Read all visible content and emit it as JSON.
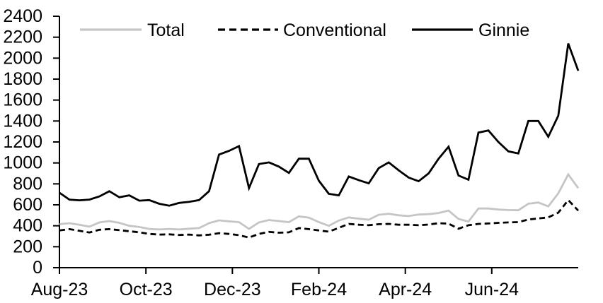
{
  "chart_data": {
    "type": "line",
    "title": "",
    "xlabel": "",
    "ylabel": "",
    "grid": false,
    "legend_position": "top",
    "x_frequency": "weekly",
    "x_tick_labels": [
      "Aug-23",
      "Oct-23",
      "Dec-23",
      "Feb-24",
      "Apr-24",
      "Jun-24"
    ],
    "y_tick_labels": [
      "0",
      "200",
      "400",
      "600",
      "800",
      "1000",
      "1200",
      "1400",
      "1600",
      "1800",
      "2000",
      "2200",
      "2400"
    ],
    "y_axis": {
      "min": 0,
      "max": 2400,
      "step": 200
    },
    "series": [
      {
        "name": "Total",
        "color": "#c5c5c5",
        "dash": "solid",
        "values": [
          415,
          425,
          410,
          392,
          432,
          445,
          428,
          400,
          388,
          370,
          365,
          370,
          365,
          372,
          378,
          425,
          452,
          442,
          435,
          370,
          432,
          455,
          445,
          435,
          490,
          478,
          435,
          400,
          450,
          480,
          468,
          458,
          505,
          515,
          500,
          493,
          507,
          511,
          522,
          545,
          465,
          440,
          565,
          565,
          555,
          550,
          548,
          610,
          622,
          585,
          710,
          890,
          760
        ]
      },
      {
        "name": "Conventional",
        "color": "#000000",
        "dash": "dashed",
        "values": [
          355,
          368,
          352,
          336,
          362,
          368,
          358,
          348,
          338,
          322,
          316,
          318,
          312,
          316,
          308,
          315,
          330,
          322,
          310,
          288,
          322,
          342,
          334,
          338,
          378,
          368,
          355,
          344,
          380,
          418,
          410,
          405,
          415,
          418,
          410,
          410,
          405,
          412,
          425,
          420,
          372,
          405,
          418,
          422,
          428,
          432,
          435,
          460,
          470,
          480,
          525,
          645,
          545
        ]
      },
      {
        "name": "Ginnie",
        "color": "#000000",
        "dash": "solid",
        "values": [
          715,
          650,
          643,
          650,
          680,
          730,
          672,
          690,
          640,
          645,
          610,
          592,
          618,
          628,
          645,
          730,
          1080,
          1115,
          1160,
          760,
          990,
          1005,
          965,
          905,
          1040,
          1040,
          830,
          705,
          690,
          870,
          835,
          805,
          950,
          1005,
          930,
          860,
          825,
          900,
          1040,
          1155,
          880,
          840,
          1290,
          1310,
          1200,
          1110,
          1090,
          1400,
          1400,
          1250,
          1450,
          2140,
          1880
        ]
      }
    ]
  }
}
